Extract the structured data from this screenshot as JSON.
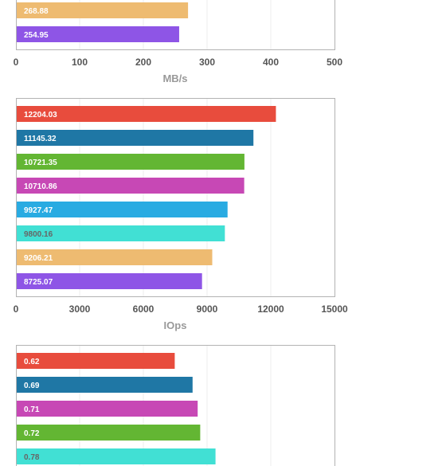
{
  "colors": {
    "red": "#e84c3d",
    "blue": "#1f77a5",
    "green": "#63b633",
    "magenta": "#c748b5",
    "skyblue": "#29abe2",
    "turquoise": "#41e0d4",
    "orange": "#eebb71",
    "purple": "#8e55e6"
  },
  "chart_data": [
    {
      "type": "bar",
      "orientation": "horizontal",
      "xlabel": "MB/s",
      "xlim": [
        0,
        500
      ],
      "ticks": [
        "0",
        "100",
        "200",
        "300",
        "400",
        "500"
      ],
      "grid": true,
      "partially_visible": "bottom bars only (chart cropped at top)",
      "bars": [
        {
          "label": "268.88",
          "value": 268.88,
          "color": "orange",
          "text_color": "#ffffff"
        },
        {
          "label": "254.95",
          "value": 254.95,
          "color": "purple",
          "text_color": "#ffffff"
        }
      ]
    },
    {
      "type": "bar",
      "orientation": "horizontal",
      "xlabel": "IOps",
      "xlim": [
        0,
        15000
      ],
      "ticks": [
        "0",
        "3000",
        "6000",
        "9000",
        "12000",
        "15000"
      ],
      "grid": true,
      "bars": [
        {
          "label": "12204.03",
          "value": 12204.03,
          "color": "red",
          "text_color": "#ffffff"
        },
        {
          "label": "11145.32",
          "value": 11145.32,
          "color": "blue",
          "text_color": "#ffffff"
        },
        {
          "label": "10721.35",
          "value": 10721.35,
          "color": "green",
          "text_color": "#ffffff"
        },
        {
          "label": "10710.86",
          "value": 10710.86,
          "color": "magenta",
          "text_color": "#ffffff"
        },
        {
          "label": "9927.47",
          "value": 9927.47,
          "color": "skyblue",
          "text_color": "#ffffff"
        },
        {
          "label": "9800.16",
          "value": 9800.16,
          "color": "turquoise",
          "text_color": "#666666"
        },
        {
          "label": "9206.21",
          "value": 9206.21,
          "color": "orange",
          "text_color": "#ffffff"
        },
        {
          "label": "8725.07",
          "value": 8725.07,
          "color": "purple",
          "text_color": "#ffffff"
        }
      ]
    },
    {
      "type": "bar",
      "orientation": "horizontal",
      "xlim": [
        0,
        1.25
      ],
      "grid": true,
      "partially_visible": "top bars only (chart cropped at bottom)",
      "bars": [
        {
          "label": "0.62",
          "value": 0.62,
          "color": "red",
          "text_color": "#ffffff"
        },
        {
          "label": "0.69",
          "value": 0.69,
          "color": "blue",
          "text_color": "#ffffff"
        },
        {
          "label": "0.71",
          "value": 0.71,
          "color": "magenta",
          "text_color": "#ffffff"
        },
        {
          "label": "0.72",
          "value": 0.72,
          "color": "green",
          "text_color": "#ffffff"
        },
        {
          "label": "0.78",
          "value": 0.78,
          "color": "turquoise",
          "text_color": "#666666"
        }
      ]
    }
  ]
}
